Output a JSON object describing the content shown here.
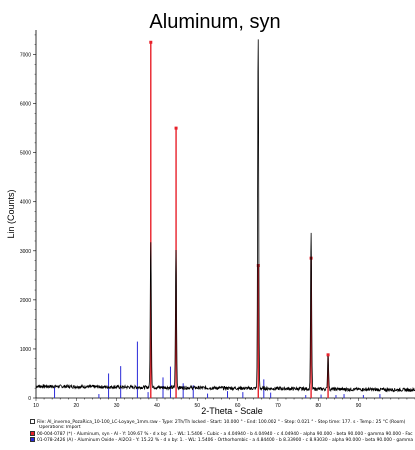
{
  "chart_data": {
    "type": "line",
    "title": "Aluminum, syn",
    "xlabel": "2-Theta - Scale",
    "ylabel": "Lin (Counts)",
    "xlim": [
      10,
      104
    ],
    "ylim": [
      0,
      7500
    ],
    "x_ticks": [
      10,
      20,
      30,
      40,
      50,
      60,
      70,
      80,
      90
    ],
    "y_ticks": [
      0,
      1000,
      2000,
      3000,
      4000,
      5000,
      6000,
      7000
    ],
    "background_counts": 240,
    "pattern_peaks": [
      {
        "x": 38.47,
        "y": 3000
      },
      {
        "x": 44.72,
        "y": 2800
      },
      {
        "x": 65.1,
        "y": 7200
      },
      {
        "x": 78.23,
        "y": 3200
      },
      {
        "x": 82.44,
        "y": 700
      }
    ],
    "series": [
      {
        "name": "00-004-0787 Aluminum, syn",
        "color": "#e8202a",
        "style": "sticks",
        "peaks": [
          {
            "x": 38.47,
            "y": 7250
          },
          {
            "x": 44.74,
            "y": 5500
          },
          {
            "x": 65.13,
            "y": 2700
          },
          {
            "x": 78.23,
            "y": 2850
          },
          {
            "x": 82.44,
            "y": 880
          }
        ]
      },
      {
        "name": "01-078-2426 Aluminum Oxide",
        "color": "#2a2ad8",
        "style": "sticks",
        "peaks": [
          {
            "x": 25.6,
            "y": 80
          },
          {
            "x": 35.15,
            "y": 1150
          },
          {
            "x": 37.8,
            "y": 120
          },
          {
            "x": 43.35,
            "y": 640
          },
          {
            "x": 52.55,
            "y": 90
          },
          {
            "x": 57.5,
            "y": 140
          },
          {
            "x": 61.3,
            "y": 120
          },
          {
            "x": 66.5,
            "y": 380
          },
          {
            "x": 68.2,
            "y": 110
          },
          {
            "x": 76.9,
            "y": 60
          },
          {
            "x": 80.7,
            "y": 70
          },
          {
            "x": 84.4,
            "y": 60
          },
          {
            "x": 86.4,
            "y": 80
          },
          {
            "x": 91.2,
            "y": 60
          },
          {
            "x": 95.3,
            "y": 80
          }
        ]
      }
    ],
    "extra_blue_sticks": [
      {
        "x": 14.6,
        "y": 220
      },
      {
        "x": 28.0,
        "y": 500
      },
      {
        "x": 31.0,
        "y": 650
      },
      {
        "x": 41.5,
        "y": 420
      },
      {
        "x": 46.5,
        "y": 300
      },
      {
        "x": 49.0,
        "y": 260
      }
    ]
  },
  "footer": {
    "file_line": "File: Al_inverno_PozaRica_10-100_LC-Loyaye_1mm.raw - Type: 2Th/Th locked - Start: 10.000 ° - End: 100.002 ° - Step: 0.021 ° - Step time: 177. s - Temp.: 25 °C (Room)",
    "operations_line": "Operations: Import",
    "ref1_line": "00-004-0787 (*) - Aluminum, syn - Al - Y: 109.67 % - d x by: 1. - WL: 1.5406 - Cubic - a 4.04940 - b 4.04940 - c 4.04940 - alpha 90.000 - beta 90.000 - gamma 90.000 - Fac",
    "ref2_line": "01-078-2426 (A) - Aluminum Oxide - Al2O3 - Y: 15.22 % - d x by: 1. - WL: 1.5406 - Orthorhombic - a 4.84400 - b 8.33900 - c 8.93030 - alpha 90.000 - beta 90.000 - gamma"
  }
}
